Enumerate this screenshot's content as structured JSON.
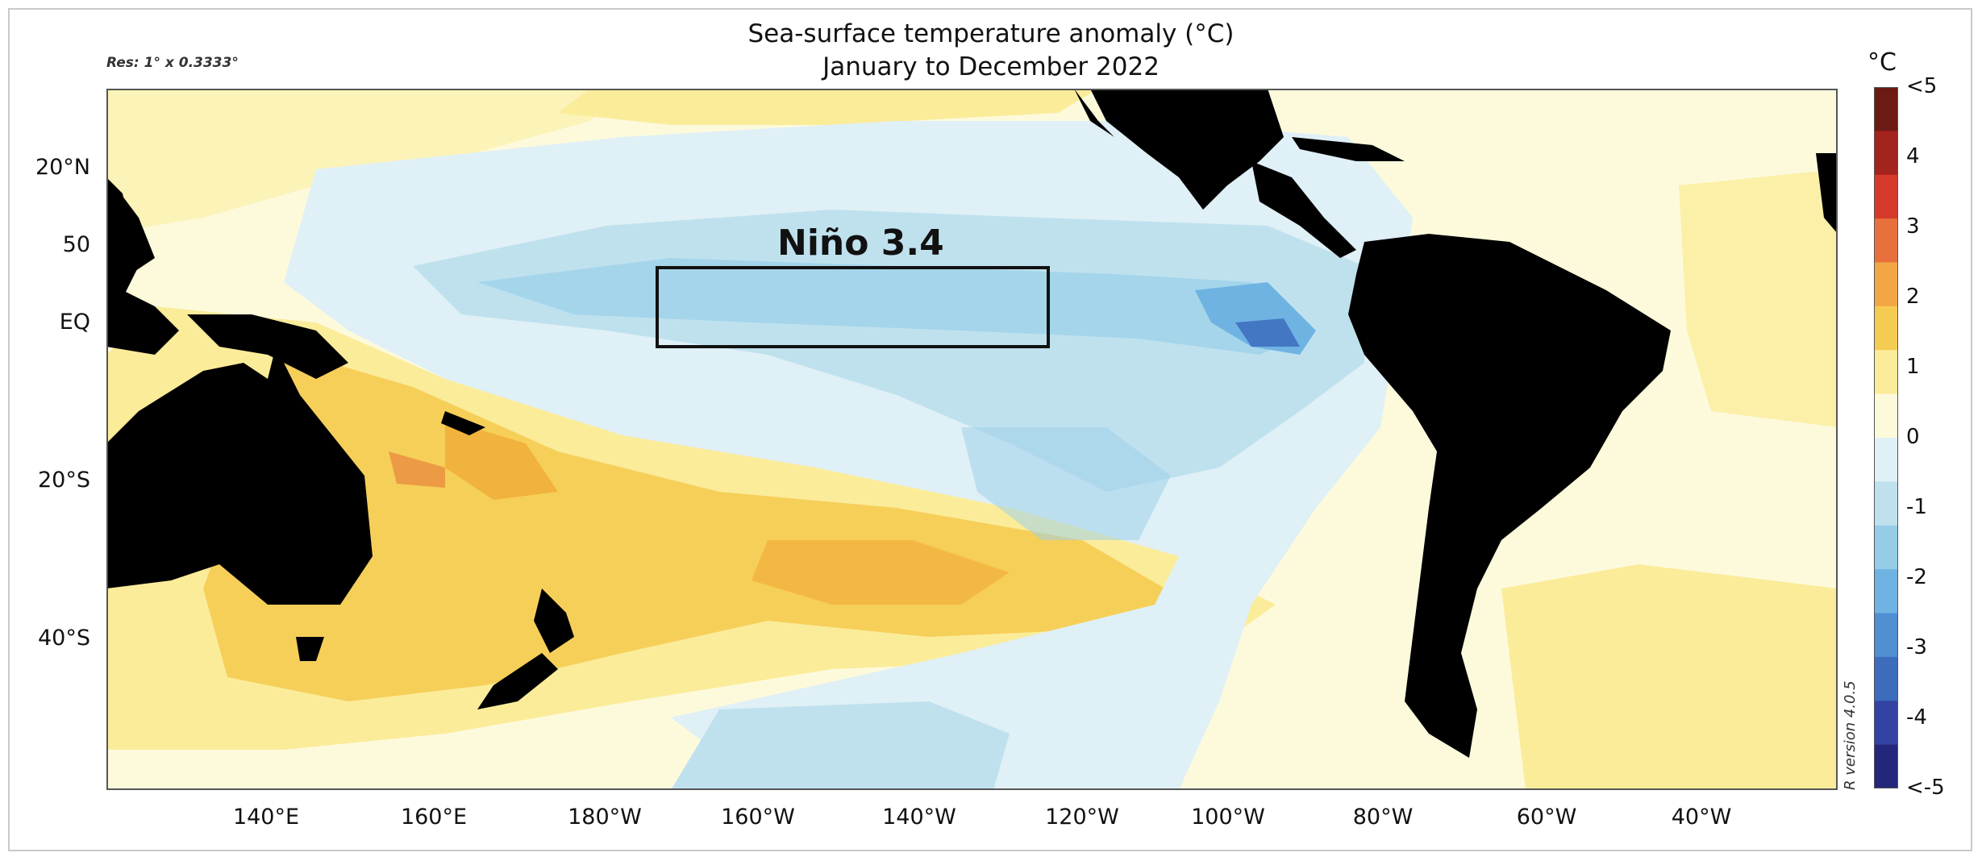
{
  "title_line1": "Sea-surface temperature anomaly (°C)",
  "title_line2": "January to December 2022",
  "resolution": "Res: 1° x 0.3333°",
  "r_version": "R version 4.0.5",
  "region_label": "Niño 3.4",
  "lat_labels": [
    "20°N",
    "50",
    "EQ",
    "20°S",
    "40°S"
  ],
  "lon_labels": [
    "140°E",
    "160°E",
    "180°W",
    "160°W",
    "140°W",
    "120°W",
    "100°W",
    "80°W",
    "60°W",
    "40°W"
  ],
  "colorbar": {
    "unit": "°C",
    "ticks": [
      "<5",
      "4",
      "3",
      "2",
      "1",
      "0",
      "-1",
      "-2",
      "-3",
      "-4",
      "<-5"
    ],
    "colors": [
      "#6b1a14",
      "#a3231d",
      "#d63a2b",
      "#e8703c",
      "#f2a744",
      "#f5cc52",
      "#fbec9a",
      "#fdfadc",
      "#dff0f6",
      "#bfe1ee",
      "#95cde9",
      "#6fb3e3",
      "#4f8fd2",
      "#3d6cbd",
      "#3443a3",
      "#23267a"
    ]
  },
  "colors": {
    "land": "#000000",
    "ocean_neutral": "#fdfadc",
    "warm_light": "#fbec9a",
    "warm": "#f5cc52",
    "warm_dark": "#f2b23e",
    "warm_hot": "#e8843c",
    "cool_light": "#dff0f6",
    "cool": "#bfe1ee",
    "cool_mid": "#9fd2ea",
    "cool_dark": "#6fb3e3",
    "cool_deep": "#3d6cbd"
  }
}
